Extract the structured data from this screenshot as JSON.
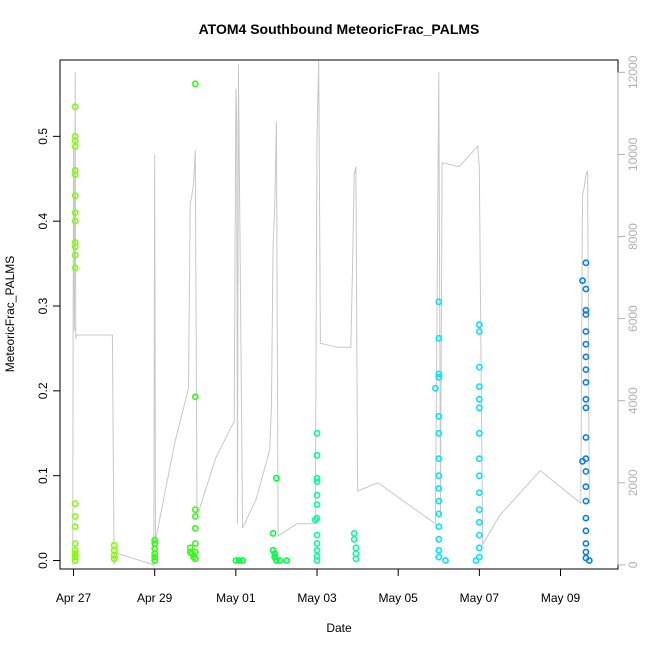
{
  "chart_data": {
    "type": "scatter",
    "title": "ATOM4 Southbound MeteoricFrac_PALMS",
    "xlabel": "Date",
    "ylabel": "MeteoricFrac_PALMS",
    "xlim": [
      "2018-04-26T16:00",
      "2018-05-10T10:00"
    ],
    "ylim": [
      -0.01,
      0.59
    ],
    "y2lim": [
      -100,
      12300
    ],
    "x_ticks": [
      {
        "date": "2018-04-27",
        "label": "Apr 27"
      },
      {
        "date": "2018-04-29",
        "label": "Apr 29"
      },
      {
        "date": "2018-05-01",
        "label": "May 01"
      },
      {
        "date": "2018-05-03",
        "label": "May 03"
      },
      {
        "date": "2018-05-05",
        "label": "May 05"
      },
      {
        "date": "2018-05-07",
        "label": "May 07"
      },
      {
        "date": "2018-05-09",
        "label": "May 09"
      }
    ],
    "y_ticks": [
      "0.0",
      "0.1",
      "0.2",
      "0.3",
      "0.4",
      "0.5"
    ],
    "y2_ticks": [
      "0",
      "2000",
      "4000",
      "6000",
      "8000",
      "10000",
      "12000"
    ],
    "grid": false,
    "legend": "none",
    "colors": {
      "altitude_line": "#c8c8c8",
      "point_colors": [
        "#7fff00",
        "#00ff40",
        "#00e5ff",
        "#0080ff"
      ]
    },
    "series": [
      {
        "color": "#7fff00",
        "points": [
          [
            "2018-04-27T01:00",
            0.535
          ],
          [
            "2018-04-27T01:00",
            0.5
          ],
          [
            "2018-04-27T01:00",
            0.495
          ],
          [
            "2018-04-27T01:00",
            0.488
          ],
          [
            "2018-04-27T01:00",
            0.46
          ],
          [
            "2018-04-27T01:00",
            0.455
          ],
          [
            "2018-04-27T01:00",
            0.43
          ],
          [
            "2018-04-27T01:00",
            0.41
          ],
          [
            "2018-04-27T01:00",
            0.4
          ],
          [
            "2018-04-27T01:00",
            0.375
          ],
          [
            "2018-04-27T01:00",
            0.37
          ],
          [
            "2018-04-27T01:00",
            0.36
          ],
          [
            "2018-04-27T01:00",
            0.345
          ],
          [
            "2018-04-27T01:00",
            0.067
          ],
          [
            "2018-04-27T01:00",
            0.052
          ],
          [
            "2018-04-27T01:00",
            0.04
          ],
          [
            "2018-04-27T01:00",
            0.02
          ],
          [
            "2018-04-27T01:00",
            0.012
          ],
          [
            "2018-04-27T01:00",
            0.008
          ],
          [
            "2018-04-27T01:00",
            0.004
          ],
          [
            "2018-04-27T01:00",
            0.0
          ],
          [
            "2018-04-28T00:00",
            0.018
          ],
          [
            "2018-04-28T00:00",
            0.012
          ],
          [
            "2018-04-28T00:00",
            0.006
          ],
          [
            "2018-04-28T00:00",
            0.002
          ]
        ]
      },
      {
        "color": "#30ff10",
        "points": [
          [
            "2018-04-29T00:00",
            0.024
          ],
          [
            "2018-04-29T00:00",
            0.02
          ],
          [
            "2018-04-29T00:00",
            0.014
          ],
          [
            "2018-04-29T00:00",
            0.008
          ],
          [
            "2018-04-29T00:00",
            0.004
          ],
          [
            "2018-04-29T00:00",
            0.0
          ],
          [
            "2018-04-29T21:00",
            0.015
          ],
          [
            "2018-04-29T21:00",
            0.01
          ],
          [
            "2018-04-29T22:00",
            0.008
          ],
          [
            "2018-04-29T23:00",
            0.004
          ],
          [
            "2018-04-30T00:00",
            0.562
          ],
          [
            "2018-04-30T00:00",
            0.193
          ],
          [
            "2018-04-30T00:00",
            0.06
          ],
          [
            "2018-04-30T00:00",
            0.052
          ],
          [
            "2018-04-30T00:00",
            0.038
          ],
          [
            "2018-04-30T00:00",
            0.02
          ],
          [
            "2018-04-30T00:00",
            0.01
          ],
          [
            "2018-04-30T00:00",
            0.002
          ]
        ]
      },
      {
        "color": "#00ff40",
        "points": [
          [
            "2018-05-01T00:00",
            0.0
          ],
          [
            "2018-05-01T02:00",
            0.0
          ],
          [
            "2018-05-01T04:00",
            0.0
          ],
          [
            "2018-05-01T22:00",
            0.032
          ],
          [
            "2018-05-01T22:00",
            0.012
          ],
          [
            "2018-05-01T23:00",
            0.008
          ],
          [
            "2018-05-01T23:00",
            0.004
          ],
          [
            "2018-05-02T00:00",
            0.097
          ],
          [
            "2018-05-02T00:00",
            0.0
          ],
          [
            "2018-05-02T02:00",
            0.0
          ],
          [
            "2018-05-02T06:00",
            0.0
          ]
        ]
      },
      {
        "color": "#00ff9c",
        "points": [
          [
            "2018-05-03T00:00",
            0.15
          ],
          [
            "2018-05-03T00:00",
            0.124
          ],
          [
            "2018-05-03T00:00",
            0.097
          ],
          [
            "2018-05-03T00:00",
            0.093
          ],
          [
            "2018-05-03T00:00",
            0.077
          ],
          [
            "2018-05-03T00:00",
            0.066
          ],
          [
            "2018-05-03T00:00",
            0.05
          ],
          [
            "2018-05-02T23:00",
            0.048
          ],
          [
            "2018-05-03T00:00",
            0.03
          ],
          [
            "2018-05-03T00:00",
            0.02
          ],
          [
            "2018-05-03T00:00",
            0.012
          ],
          [
            "2018-05-03T00:00",
            0.005
          ],
          [
            "2018-05-03T00:00",
            0.0
          ],
          [
            "2018-05-03T22:00",
            0.032
          ],
          [
            "2018-05-03T22:00",
            0.025
          ],
          [
            "2018-05-03T23:00",
            0.015
          ],
          [
            "2018-05-03T23:00",
            0.008
          ],
          [
            "2018-05-03T23:00",
            0.002
          ]
        ]
      },
      {
        "color": "#00e5ff",
        "points": [
          [
            "2018-05-06T00:00",
            0.305
          ],
          [
            "2018-05-06T00:00",
            0.262
          ],
          [
            "2018-05-06T00:00",
            0.22
          ],
          [
            "2018-05-06T00:00",
            0.216
          ],
          [
            "2018-05-05T22:00",
            0.203
          ],
          [
            "2018-05-06T00:00",
            0.17
          ],
          [
            "2018-05-06T00:00",
            0.15
          ],
          [
            "2018-05-06T00:00",
            0.12
          ],
          [
            "2018-05-06T00:00",
            0.1
          ],
          [
            "2018-05-06T00:00",
            0.085
          ],
          [
            "2018-05-06T00:00",
            0.07
          ],
          [
            "2018-05-06T00:00",
            0.055
          ],
          [
            "2018-05-06T00:00",
            0.04
          ],
          [
            "2018-05-06T00:00",
            0.025
          ],
          [
            "2018-05-06T00:00",
            0.012
          ],
          [
            "2018-05-06T00:00",
            0.004
          ],
          [
            "2018-05-06T04:00",
            0.0
          ],
          [
            "2018-05-07T00:00",
            0.278
          ],
          [
            "2018-05-07T00:00",
            0.27
          ],
          [
            "2018-05-07T00:00",
            0.228
          ],
          [
            "2018-05-07T00:00",
            0.205
          ],
          [
            "2018-05-07T00:00",
            0.19
          ],
          [
            "2018-05-07T00:00",
            0.18
          ],
          [
            "2018-05-07T00:00",
            0.15
          ],
          [
            "2018-05-07T00:00",
            0.12
          ],
          [
            "2018-05-07T00:00",
            0.1
          ],
          [
            "2018-05-07T00:00",
            0.08
          ],
          [
            "2018-05-07T00:00",
            0.06
          ],
          [
            "2018-05-07T00:00",
            0.045
          ],
          [
            "2018-05-07T00:00",
            0.03
          ],
          [
            "2018-05-07T00:00",
            0.015
          ],
          [
            "2018-05-07T00:00",
            0.004
          ],
          [
            "2018-05-06T22:00",
            0.0
          ]
        ]
      },
      {
        "color": "#0080ff",
        "points": [
          [
            "2018-05-09T15:00",
            0.351
          ],
          [
            "2018-05-09T13:00",
            0.33
          ],
          [
            "2018-05-09T15:00",
            0.32
          ],
          [
            "2018-05-09T15:00",
            0.295
          ],
          [
            "2018-05-09T15:00",
            0.29
          ],
          [
            "2018-05-09T15:00",
            0.27
          ],
          [
            "2018-05-09T15:00",
            0.255
          ],
          [
            "2018-05-09T15:00",
            0.24
          ],
          [
            "2018-05-09T15:00",
            0.225
          ],
          [
            "2018-05-09T15:00",
            0.21
          ],
          [
            "2018-05-09T15:00",
            0.19
          ],
          [
            "2018-05-09T15:00",
            0.18
          ],
          [
            "2018-05-09T15:00",
            0.145
          ],
          [
            "2018-05-09T13:00",
            0.117
          ],
          [
            "2018-05-09T15:00",
            0.12
          ],
          [
            "2018-05-09T15:00",
            0.105
          ],
          [
            "2018-05-09T15:00",
            0.087
          ],
          [
            "2018-05-09T15:00",
            0.07
          ],
          [
            "2018-05-09T15:00",
            0.05
          ],
          [
            "2018-05-09T15:00",
            0.035
          ],
          [
            "2018-05-09T15:00",
            0.02
          ],
          [
            "2018-05-09T15:00",
            0.01
          ],
          [
            "2018-05-09T15:00",
            0.003
          ],
          [
            "2018-05-09T17:00",
            0.0
          ]
        ]
      }
    ],
    "altitude_line": {
      "axis": "right",
      "x": [
        "2018-04-26T23:30",
        "2018-04-27T00:00",
        "2018-04-27T00:30",
        "2018-04-27T01:00",
        "2018-04-27T01:20",
        "2018-04-27T01:45",
        "2018-04-27T12:00",
        "2018-04-27T23:00",
        "2018-04-28T00:00",
        "2018-04-28T00:30",
        "2018-04-28T23:30",
        "2018-04-29T00:00",
        "2018-04-29T00:30",
        "2018-04-29T12:00",
        "2018-04-29T20:00",
        "2018-04-29T21:00",
        "2018-04-29T22:00",
        "2018-04-29T23:00",
        "2018-04-30T00:00",
        "2018-04-30T01:00",
        "2018-04-30T02:00",
        "2018-04-30T12:00",
        "2018-04-30T23:00",
        "2018-05-01T00:00",
        "2018-05-01T00:30",
        "2018-05-01T01:00",
        "2018-05-01T01:30",
        "2018-05-01T04:00",
        "2018-05-01T12:00",
        "2018-05-01T20:00",
        "2018-05-01T21:00",
        "2018-05-01T22:00",
        "2018-05-01T23:00",
        "2018-05-02T00:00",
        "2018-05-02T01:00",
        "2018-05-02T12:00",
        "2018-05-02T23:00",
        "2018-05-03T00:00",
        "2018-05-03T01:00",
        "2018-05-03T02:00",
        "2018-05-03T12:00",
        "2018-05-03T20:00",
        "2018-05-03T21:00",
        "2018-05-03T22:00",
        "2018-05-03T23:00",
        "2018-05-04T00:00",
        "2018-05-04T12:00",
        "2018-05-05T22:00",
        "2018-05-06T00:00",
        "2018-05-06T01:00",
        "2018-05-06T02:00",
        "2018-05-06T12:00",
        "2018-05-06T23:00",
        "2018-05-07T00:00",
        "2018-05-07T02:00",
        "2018-05-07T12:00",
        "2018-05-08T12:00",
        "2018-05-09T12:00",
        "2018-05-09T13:00",
        "2018-05-09T14:00",
        "2018-05-09T15:00",
        "2018-05-09T16:00",
        "2018-05-09T17:00"
      ],
      "y": [
        0,
        10200,
        5700,
        12000,
        5500,
        5600,
        5600,
        5600,
        0,
        300,
        0,
        10000,
        600,
        3000,
        4300,
        8800,
        9000,
        9300,
        10100,
        1200,
        1300,
        2600,
        3500,
        11600,
        10800,
        1000,
        12200,
        900,
        1600,
        2800,
        3800,
        7800,
        8700,
        10800,
        700,
        1000,
        1000,
        10400,
        12300,
        5400,
        5300,
        5300,
        7200,
        9500,
        9700,
        1800,
        2000,
        1000,
        12000,
        1200,
        9800,
        9700,
        10200,
        9700,
        500,
        1200,
        2300,
        1500,
        9000,
        9200,
        9500,
        9600,
        1500
      ]
    }
  }
}
